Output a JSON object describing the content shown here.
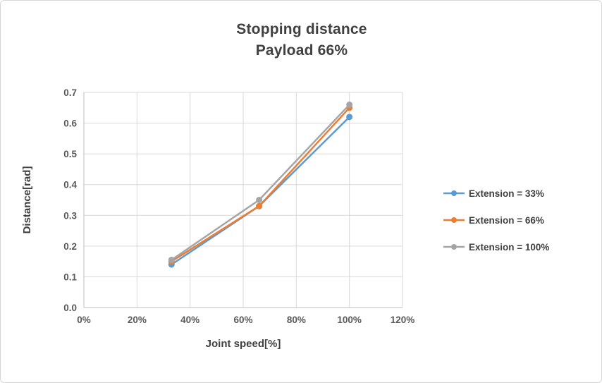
{
  "frame": {
    "background": "#ffffff",
    "border_color": "#d7d7d7",
    "gridline_color": "#d9d9d9",
    "axis_text_color": "#595959",
    "title_color": "#404040"
  },
  "chart_data": {
    "type": "line",
    "title": "Stopping distance",
    "subtitle": "Payload 66%",
    "xlabel": "Joint speed[%]",
    "ylabel": "Distance[rad]",
    "xlim": [
      0,
      120
    ],
    "ylim": [
      0,
      0.7
    ],
    "grid": true,
    "legend_position": "right",
    "x_tick_labels": [
      "0%",
      "20%",
      "40%",
      "60%",
      "80%",
      "100%",
      "120%"
    ],
    "x_tick_values": [
      0,
      20,
      40,
      60,
      80,
      100,
      120
    ],
    "y_tick_labels": [
      "0.0",
      "0.1",
      "0.2",
      "0.3",
      "0.4",
      "0.5",
      "0.6",
      "0.7"
    ],
    "y_tick_values": [
      0,
      0.1,
      0.2,
      0.3,
      0.4,
      0.5,
      0.6,
      0.7
    ],
    "x": [
      33,
      66,
      100
    ],
    "series": [
      {
        "name": "Extension = 33%",
        "color": "#5B9BD5",
        "values": [
          0.14,
          0.33,
          0.62
        ]
      },
      {
        "name": "Extension = 66%",
        "color": "#ED7D31",
        "values": [
          0.15,
          0.33,
          0.65
        ]
      },
      {
        "name": "Extension = 100%",
        "color": "#A5A5A5",
        "values": [
          0.155,
          0.35,
          0.66
        ]
      }
    ]
  }
}
